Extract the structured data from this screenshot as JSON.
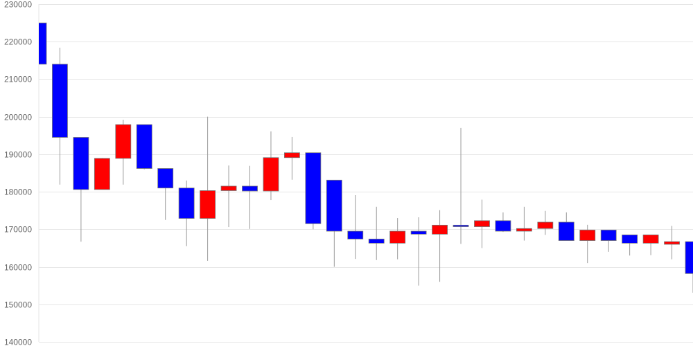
{
  "chart_data": {
    "type": "candlestick",
    "title": "",
    "xlabel": "",
    "ylabel": "",
    "ylim": [
      140000,
      230000
    ],
    "yticks": [
      "140000",
      "150000",
      "160000",
      "170000",
      "180000",
      "190000",
      "200000",
      "210000",
      "220000",
      "230000"
    ],
    "grid": true,
    "colors": {
      "up": "#ff0000",
      "down": "#0000ff",
      "wick": "#999999",
      "grid": "#e6e6e6"
    },
    "candles": [
      {
        "o": 225000,
        "h": 225000,
        "l": 214000,
        "c": 214000
      },
      {
        "o": 214000,
        "h": 218400,
        "l": 181900,
        "c": 194500
      },
      {
        "o": 194500,
        "h": 194500,
        "l": 166700,
        "c": 180600
      },
      {
        "o": 180600,
        "h": 189000,
        "l": 180600,
        "c": 188900
      },
      {
        "o": 188900,
        "h": 199200,
        "l": 181900,
        "c": 197900
      },
      {
        "o": 197900,
        "h": 197900,
        "l": 186000,
        "c": 186200
      },
      {
        "o": 186200,
        "h": 186200,
        "l": 172500,
        "c": 181000
      },
      {
        "o": 181000,
        "h": 183000,
        "l": 165500,
        "c": 172900
      },
      {
        "o": 172900,
        "h": 200000,
        "l": 161600,
        "c": 180300
      },
      {
        "o": 180300,
        "h": 187000,
        "l": 170600,
        "c": 181500
      },
      {
        "o": 181500,
        "h": 186900,
        "l": 170100,
        "c": 180200
      },
      {
        "o": 180200,
        "h": 196100,
        "l": 177800,
        "c": 189100
      },
      {
        "o": 189100,
        "h": 194600,
        "l": 183200,
        "c": 190400
      },
      {
        "o": 190400,
        "h": 190400,
        "l": 170000,
        "c": 171500
      },
      {
        "o": 183100,
        "h": 183100,
        "l": 160000,
        "c": 169500
      },
      {
        "o": 169500,
        "h": 179100,
        "l": 162100,
        "c": 167400
      },
      {
        "o": 167400,
        "h": 176000,
        "l": 161800,
        "c": 166300
      },
      {
        "o": 166300,
        "h": 173000,
        "l": 162000,
        "c": 169500
      },
      {
        "o": 169500,
        "h": 173200,
        "l": 155000,
        "c": 168700
      },
      {
        "o": 168700,
        "h": 175100,
        "l": 156000,
        "c": 171100
      },
      {
        "o": 171100,
        "h": 197000,
        "l": 166100,
        "c": 170700
      },
      {
        "o": 170700,
        "h": 177900,
        "l": 165000,
        "c": 172300
      },
      {
        "o": 172300,
        "h": 174500,
        "l": 169300,
        "c": 169500
      },
      {
        "o": 169500,
        "h": 176000,
        "l": 167000,
        "c": 170200
      },
      {
        "o": 170200,
        "h": 174900,
        "l": 168500,
        "c": 171900
      },
      {
        "o": 171900,
        "h": 174500,
        "l": 167000,
        "c": 167000
      },
      {
        "o": 167000,
        "h": 171200,
        "l": 161000,
        "c": 169800
      },
      {
        "o": 169800,
        "h": 169800,
        "l": 164000,
        "c": 167000
      },
      {
        "o": 168500,
        "h": 168500,
        "l": 163000,
        "c": 166300
      },
      {
        "o": 166300,
        "h": 168500,
        "l": 163100,
        "c": 168500
      },
      {
        "o": 166000,
        "h": 170900,
        "l": 162000,
        "c": 166700
      },
      {
        "o": 166700,
        "h": 166700,
        "l": 153100,
        "c": 158200
      }
    ]
  }
}
